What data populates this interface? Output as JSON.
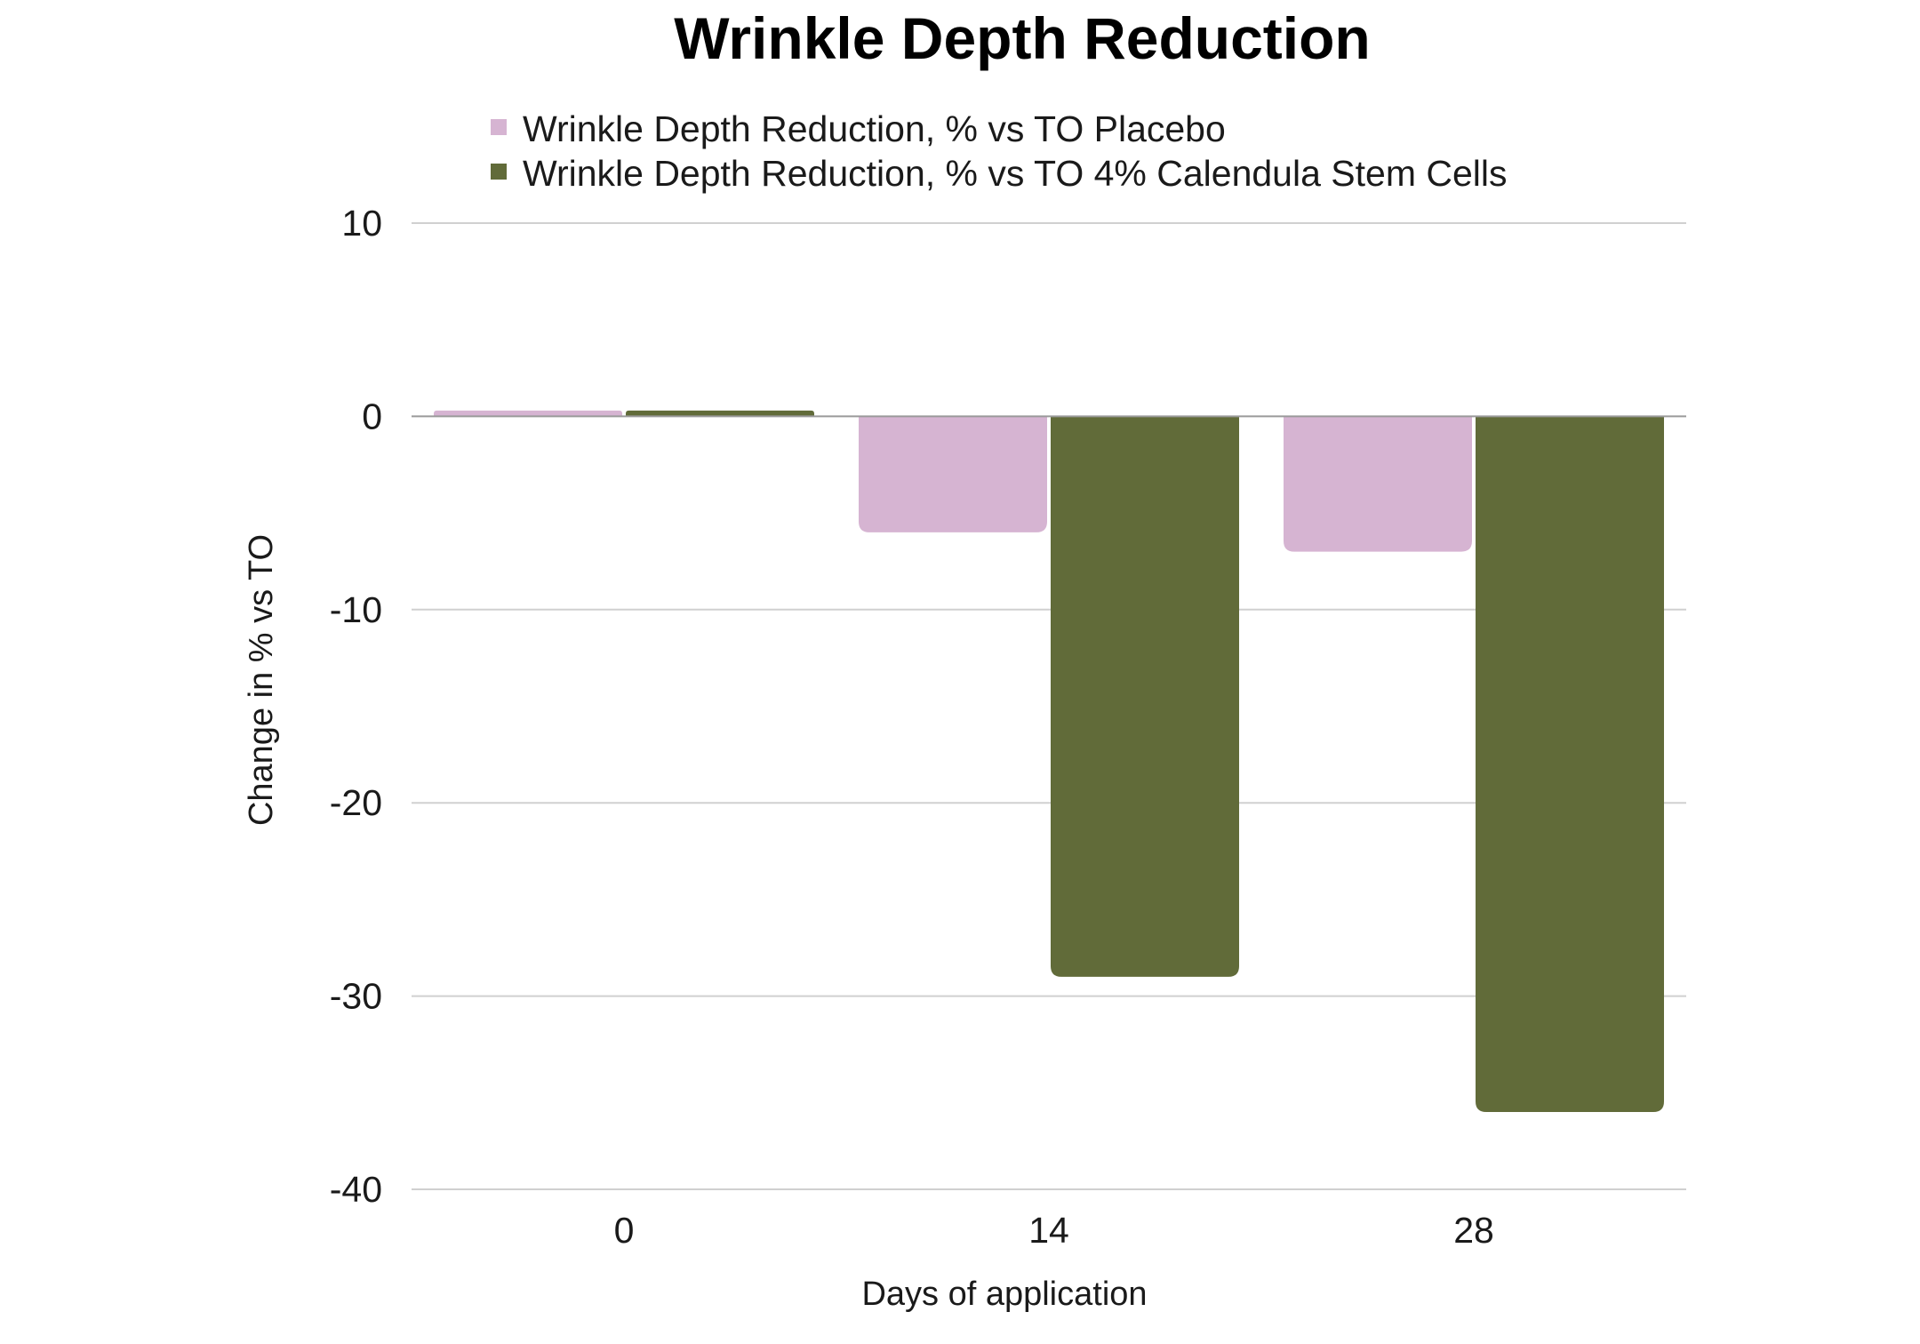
{
  "chart_data": {
    "type": "bar",
    "title": "Wrinkle Depth Reduction",
    "xlabel": "Days of application",
    "ylabel": "Change in % vs TO",
    "categories": [
      "0",
      "14",
      "28"
    ],
    "ylim": [
      -40,
      10
    ],
    "yticks": [
      10,
      0,
      -10,
      -20,
      -30,
      -40
    ],
    "ytick_labels": [
      "10",
      "0",
      "-10",
      "-20",
      "-30",
      "-40"
    ],
    "grid": true,
    "legend_position": "top",
    "series": [
      {
        "name": "Wrinkle Depth Reduction, % vs TO Placebo",
        "color": "#d6b4d2",
        "values": [
          0.3,
          -6,
          -7
        ]
      },
      {
        "name": "Wrinkle Depth Reduction, % vs TO 4% Calendula Stem Cells",
        "color": "#616b39",
        "values": [
          0.3,
          -29,
          -36
        ]
      }
    ]
  }
}
